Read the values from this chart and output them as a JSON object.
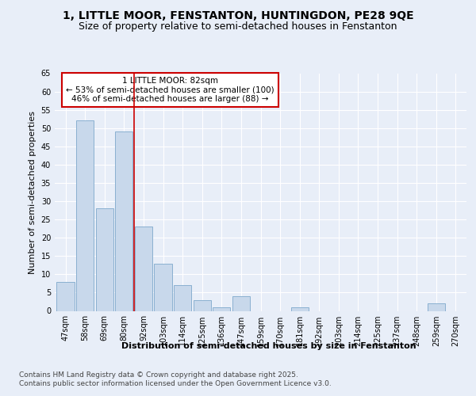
{
  "title1": "1, LITTLE MOOR, FENSTANTON, HUNTINGDON, PE28 9QE",
  "title2": "Size of property relative to semi-detached houses in Fenstanton",
  "xlabel": "Distribution of semi-detached houses by size in Fenstanton",
  "ylabel": "Number of semi-detached properties",
  "categories": [
    "47sqm",
    "58sqm",
    "69sqm",
    "80sqm",
    "92sqm",
    "103sqm",
    "114sqm",
    "125sqm",
    "136sqm",
    "147sqm",
    "159sqm",
    "170sqm",
    "181sqm",
    "192sqm",
    "203sqm",
    "214sqm",
    "225sqm",
    "237sqm",
    "248sqm",
    "259sqm",
    "270sqm"
  ],
  "values": [
    8,
    52,
    28,
    49,
    23,
    13,
    7,
    3,
    1,
    4,
    0,
    0,
    1,
    0,
    0,
    0,
    0,
    0,
    0,
    2,
    0
  ],
  "bar_color": "#c8d8eb",
  "bar_edge_color": "#8ab0d0",
  "red_line_x": 3.5,
  "annotation_title": "1 LITTLE MOOR: 82sqm",
  "annotation_line1": "← 53% of semi-detached houses are smaller (100)",
  "annotation_line2": "46% of semi-detached houses are larger (88) →",
  "annotation_box_color": "#ffffff",
  "annotation_box_edge": "#cc0000",
  "vline_color": "#cc0000",
  "ylim": [
    0,
    65
  ],
  "yticks": [
    0,
    5,
    10,
    15,
    20,
    25,
    30,
    35,
    40,
    45,
    50,
    55,
    60,
    65
  ],
  "footnote1": "Contains HM Land Registry data © Crown copyright and database right 2025.",
  "footnote2": "Contains public sector information licensed under the Open Government Licence v3.0.",
  "bg_color": "#e8eef8",
  "plot_bg_color": "#e8eef8",
  "grid_color": "#ffffff",
  "title1_fontsize": 10,
  "title2_fontsize": 9,
  "axis_label_fontsize": 8,
  "tick_fontsize": 7,
  "annotation_fontsize": 7.5,
  "footnote_fontsize": 6.5
}
